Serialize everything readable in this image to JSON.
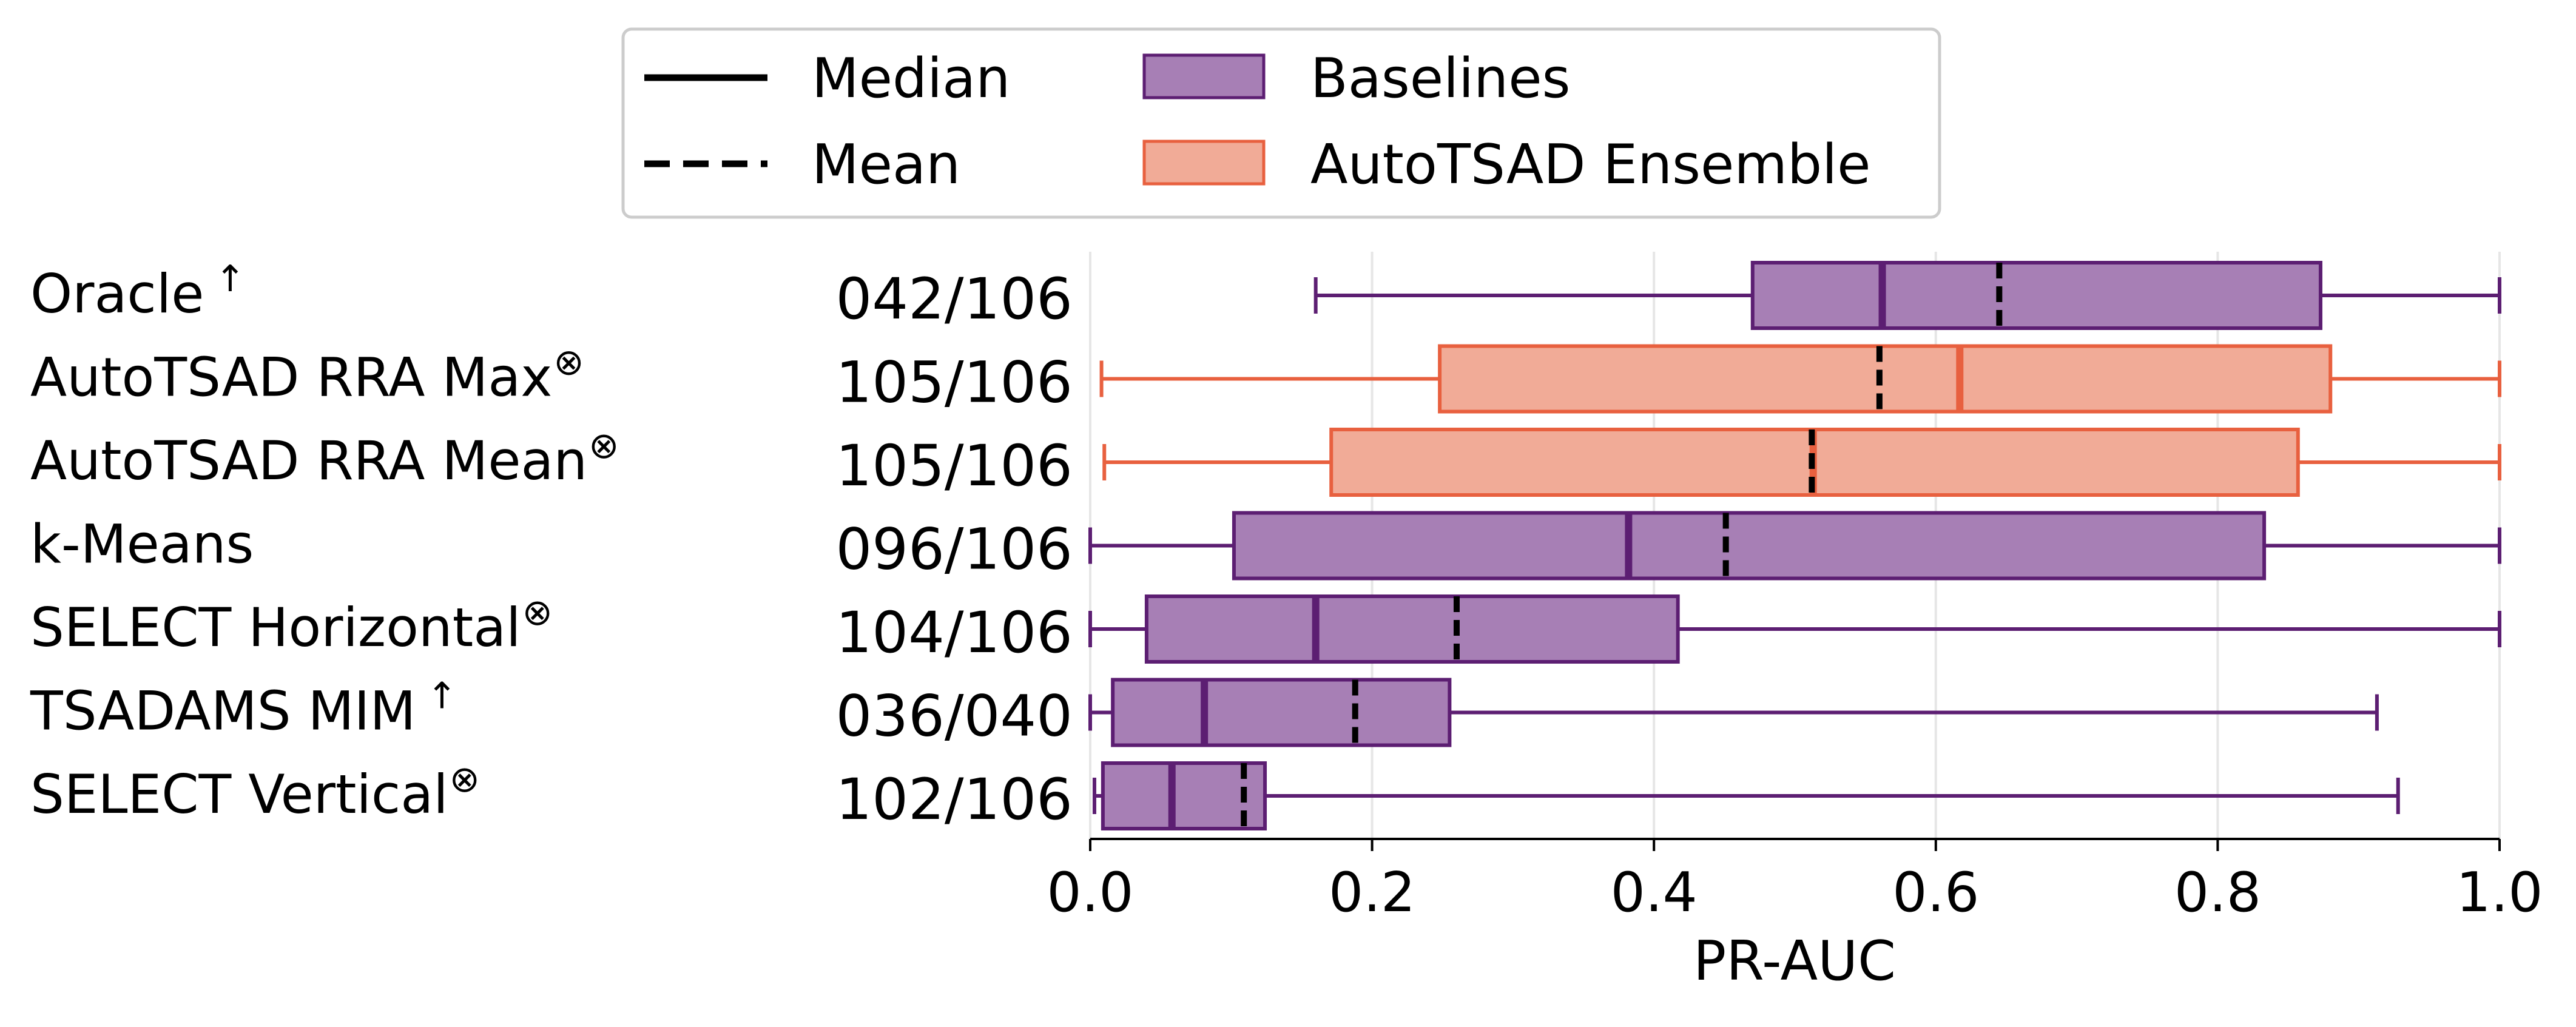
{
  "chart_data": {
    "type": "box",
    "xlabel": "PR-AUC",
    "xlim": [
      0.0,
      1.0
    ],
    "xticks": [
      "0.0",
      "0.2",
      "0.4",
      "0.6",
      "0.8",
      "1.0"
    ],
    "grid": "vertical",
    "legend": {
      "placement": "top-center",
      "entries": [
        {
          "label": "Median",
          "style": "solid-line"
        },
        {
          "label": "Mean",
          "style": "dashed-line"
        },
        {
          "label": "Baselines",
          "style": "patch",
          "group": "baseline"
        },
        {
          "label": "AutoTSAD Ensemble",
          "style": "patch",
          "group": "ensemble"
        }
      ]
    },
    "colors": {
      "baseline_fill": "#a77fb5",
      "baseline_edge": "#5c1e72",
      "ensemble_fill": "#f1ab97",
      "ensemble_edge": "#e8603f"
    },
    "rows": [
      {
        "label": "Oracle",
        "mark": "↑",
        "count": "042/106",
        "group": "baseline",
        "whisker_low": 0.16,
        "q1": 0.47,
        "median": 0.562,
        "mean": 0.645,
        "q3": 0.873,
        "whisker_high": 1.0
      },
      {
        "label": "AutoTSAD RRA  Max",
        "mark": "⊗",
        "count": "105/106",
        "group": "ensemble",
        "whisker_low": 0.008,
        "q1": 0.248,
        "median": 0.617,
        "mean": 0.56,
        "q3": 0.88,
        "whisker_high": 1.0
      },
      {
        "label": "AutoTSAD RRA  Mean",
        "mark": "⊗",
        "count": "105/106",
        "group": "ensemble",
        "whisker_low": 0.01,
        "q1": 0.171,
        "median": 0.513,
        "mean": 0.512,
        "q3": 0.857,
        "whisker_high": 1.0
      },
      {
        "label": "k-Means",
        "mark": "",
        "count": "096/106",
        "group": "baseline",
        "whisker_low": 0.0,
        "q1": 0.102,
        "median": 0.382,
        "mean": 0.451,
        "q3": 0.833,
        "whisker_high": 1.0
      },
      {
        "label": "SELECT Horizontal",
        "mark": "⊗",
        "count": "104/106",
        "group": "baseline",
        "whisker_low": 0.0,
        "q1": 0.04,
        "median": 0.16,
        "mean": 0.26,
        "q3": 0.417,
        "whisker_high": 1.0
      },
      {
        "label": "TSADAMS MIM",
        "mark": "↑",
        "count": "036/040",
        "group": "baseline",
        "whisker_low": 0.0,
        "q1": 0.016,
        "median": 0.081,
        "mean": 0.188,
        "q3": 0.255,
        "whisker_high": 0.913
      },
      {
        "label": "SELECT Vertical",
        "mark": "⊗",
        "count": "102/106",
        "group": "baseline",
        "whisker_low": 0.003,
        "q1": 0.009,
        "median": 0.058,
        "mean": 0.109,
        "q3": 0.124,
        "whisker_high": 0.928
      }
    ]
  }
}
